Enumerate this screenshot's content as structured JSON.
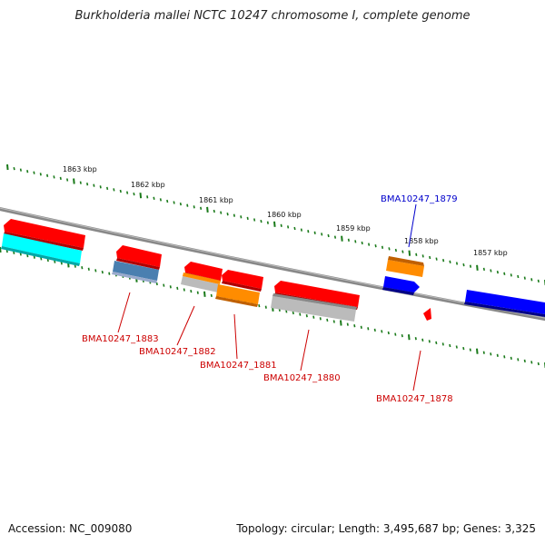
{
  "title": "Burkholderia mallei NCTC 10247 chromosome I, complete genome",
  "footer": {
    "accession": "Accession: NC_009080",
    "summary": "Topology: circular; Length: 3,495,687 bp; Genes: 3,325"
  },
  "colors": {
    "backbone": "#888888",
    "tick": "#1a7a1a",
    "red_gene": "#ff0000",
    "cyan_gene": "#00ffff",
    "steel_gene": "#4a7fb0",
    "orange_gene": "#ff8c00",
    "gray_gene": "#bbbbbb",
    "blue_gene": "#0000ff",
    "label_red": "#cc0000",
    "label_blue": "#0000cc"
  },
  "scale_labels": [
    "1863 kbp",
    "1862 kbp",
    "1861 kbp",
    "1860 kbp",
    "1859 kbp",
    "1858 kbp",
    "1857 kbp"
  ],
  "gene_labels": [
    {
      "id": "BMA10247_1883",
      "color": "#cc0000"
    },
    {
      "id": "BMA10247_1882",
      "color": "#cc0000"
    },
    {
      "id": "BMA10247_1881",
      "color": "#cc0000"
    },
    {
      "id": "BMA10247_1880",
      "color": "#cc0000"
    },
    {
      "id": "BMA10247_1879",
      "color": "#0000cc"
    },
    {
      "id": "BMA10247_1878",
      "color": "#cc0000"
    }
  ]
}
